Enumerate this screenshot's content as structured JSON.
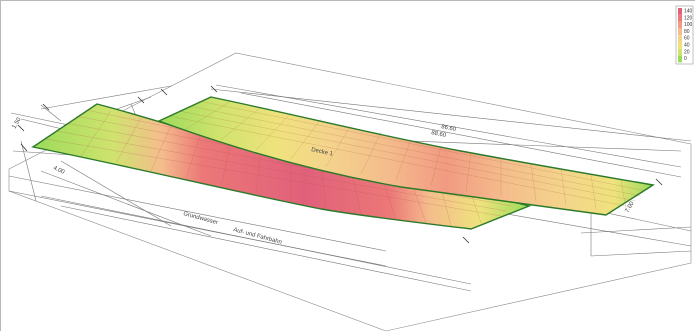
{
  "legend": {
    "values": [
      "140",
      "120",
      "100",
      "80",
      "60",
      "40",
      "20",
      "0"
    ],
    "colors": [
      "#e0607a",
      "#ec7878",
      "#f29a82",
      "#f4bd8c",
      "#f4d48c",
      "#efe27d",
      "#cfe36e",
      "#9cdb5a"
    ]
  },
  "drawing": {
    "labels": {
      "dim_upper_1": "86.60",
      "dim_upper_2": "88.60",
      "slab_name": "Decke 1",
      "gradient_label": "Grundwasser",
      "bottom_label": "Auf- und Fahrbahn",
      "side_label_1": "4.00",
      "side_label_2": "1.50",
      "side_label_3": "7.00"
    }
  },
  "colors": {
    "outline": "#2a7a2a",
    "construction_lines": "#666666",
    "frame": "#b8b8b8"
  }
}
